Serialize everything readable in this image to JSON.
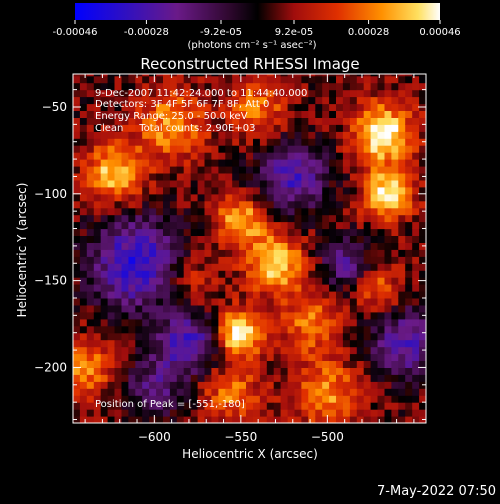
{
  "chart_data": {
    "type": "heatmap",
    "title": "Reconstructed RHESSI Image",
    "xlabel": "Heliocentric X (arcsec)",
    "ylabel": "Heliocentric Y (arcsec)",
    "xlim": [
      -647,
      -443
    ],
    "ylim": [
      -232,
      -31
    ],
    "xticks": [
      -600,
      -550,
      -500
    ],
    "yticks": [
      -50,
      -100,
      -150,
      -200
    ],
    "grid": false,
    "colorbar": {
      "range": [
        -0.00046,
        0.00046
      ],
      "ticks": [
        -0.00046,
        -0.00028,
        -9.2e-05,
        9.2e-05,
        0.00028,
        0.00046
      ],
      "tick_labels": [
        "-0.00046",
        "-0.00028",
        "-9.2e-05",
        "9.2e-05",
        "0.00028",
        "0.00046"
      ],
      "unit_label": "(photons cm⁻² s⁻¹ asec⁻²)",
      "colors": [
        "#0000ff",
        "#3a0a8f",
        "#7a1a7a",
        "#000000",
        "#a01010",
        "#e04000",
        "#ff9a00",
        "#ffee70",
        "#ffffff"
      ]
    },
    "annotations": [
      "9-Dec-2007 11:42:24.000 to 11:44:40.000",
      "Detectors: 3F 4F 5F 6F 7F 8F, Att 0",
      "Energy Range: 25.0 - 50.0 keV",
      "Clean     Total counts: 2.90E+03"
    ],
    "peak_label": "Position of Peak = [-551,-180]",
    "peak": [
      -551,
      -180
    ],
    "bright_sources": [
      {
        "x": -551,
        "y": -180,
        "strength": 1.0,
        "spread": 9
      },
      {
        "x": -468,
        "y": -65,
        "strength": 0.95,
        "spread": 12
      },
      {
        "x": -465,
        "y": -100,
        "strength": 0.85,
        "spread": 10
      },
      {
        "x": -530,
        "y": -140,
        "strength": 0.8,
        "spread": 12
      },
      {
        "x": -550,
        "y": -115,
        "strength": 0.7,
        "spread": 10
      },
      {
        "x": -623,
        "y": -88,
        "strength": 0.75,
        "spread": 12
      },
      {
        "x": -590,
        "y": -60,
        "strength": 0.6,
        "spread": 14
      },
      {
        "x": -500,
        "y": -215,
        "strength": 0.55,
        "spread": 14
      },
      {
        "x": -555,
        "y": -215,
        "strength": 0.5,
        "spread": 12
      },
      {
        "x": -640,
        "y": -200,
        "strength": 0.55,
        "spread": 12
      },
      {
        "x": -510,
        "y": -175,
        "strength": 0.5,
        "spread": 12
      },
      {
        "x": -470,
        "y": -155,
        "strength": 0.45,
        "spread": 10
      },
      {
        "x": -580,
        "y": -150,
        "strength": 0.35,
        "spread": 12
      },
      {
        "x": -540,
        "y": -50,
        "strength": 0.5,
        "spread": 12
      }
    ],
    "dark_regions": [
      {
        "x": -610,
        "y": -140,
        "strength": 0.9,
        "spread": 18
      },
      {
        "x": -580,
        "y": -185,
        "strength": 0.8,
        "spread": 12
      },
      {
        "x": -520,
        "y": -90,
        "strength": 0.7,
        "spread": 14
      },
      {
        "x": -490,
        "y": -140,
        "strength": 0.55,
        "spread": 10
      },
      {
        "x": -455,
        "y": -185,
        "strength": 0.7,
        "spread": 14
      },
      {
        "x": -600,
        "y": -210,
        "strength": 0.5,
        "spread": 12
      }
    ]
  },
  "footer": {
    "date_stamp": "7-May-2022 07:50"
  }
}
